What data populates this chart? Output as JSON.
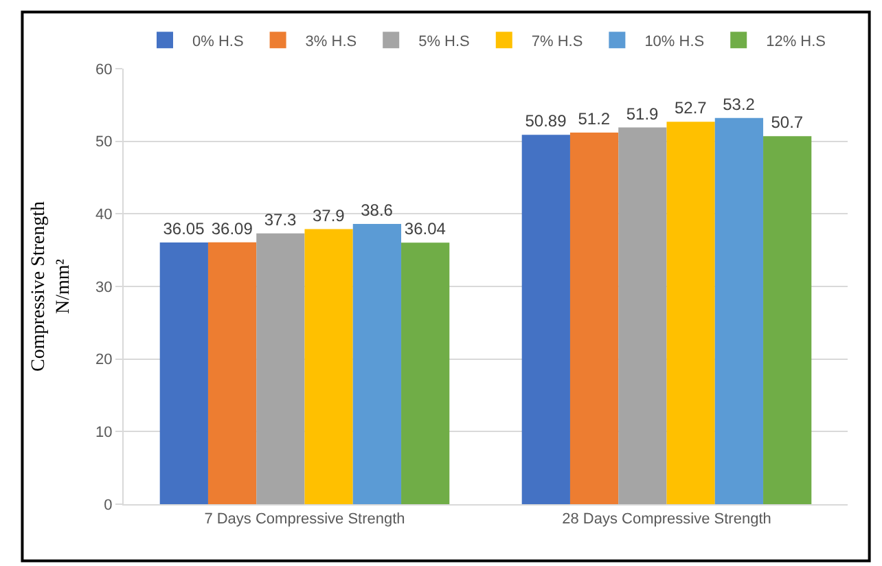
{
  "chart_data": {
    "type": "bar",
    "ylabel": "Compressive Strength\nN/mm²",
    "categories": [
      "7 Days Compressive Strength",
      "28 Days Compressive Strength"
    ],
    "series": [
      {
        "name": "0% H.S",
        "color": "#4472c4",
        "values": [
          36.05,
          50.89
        ]
      },
      {
        "name": "3% H.S",
        "color": "#ed7d31",
        "values": [
          36.09,
          51.2
        ]
      },
      {
        "name": "5% H.S",
        "color": "#a5a5a5",
        "values": [
          37.3,
          51.9
        ]
      },
      {
        "name": "7% H.S",
        "color": "#ffc000",
        "values": [
          37.9,
          52.7
        ]
      },
      {
        "name": "10% H.S",
        "color": "#5b9bd5",
        "values": [
          38.6,
          53.2
        ]
      },
      {
        "name": "12% H.S",
        "color": "#70ad47",
        "values": [
          36.04,
          50.7
        ]
      }
    ],
    "ylim": [
      0,
      60
    ],
    "yticks": [
      0,
      10,
      20,
      30,
      40,
      50,
      60
    ],
    "grid": "y",
    "legend": "top",
    "data_labels": true
  }
}
